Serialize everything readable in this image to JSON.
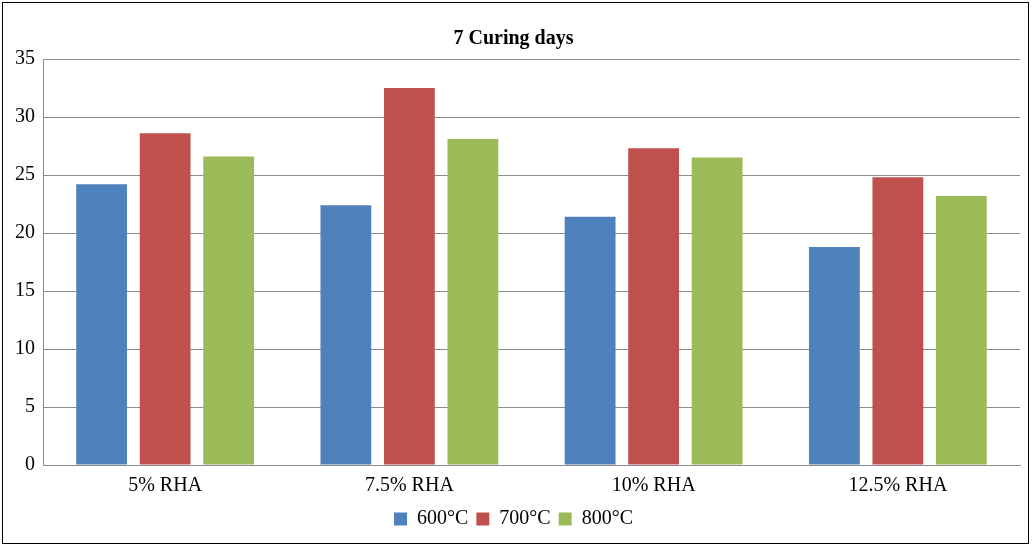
{
  "chart_data": {
    "type": "bar",
    "title": "7 Curing days",
    "categories": [
      "5% RHA",
      "7.5% RHA",
      "10% RHA",
      "12.5% RHA"
    ],
    "series": [
      {
        "name": "600°C",
        "color": "#4f81bd",
        "values": [
          24.2,
          22.4,
          21.4,
          18.8
        ]
      },
      {
        "name": "700°C",
        "color": "#c0504d",
        "values": [
          28.6,
          32.5,
          27.3,
          24.8
        ]
      },
      {
        "name": "800°C",
        "color": "#9bbb59",
        "values": [
          26.6,
          28.1,
          26.5,
          23.2
        ]
      }
    ],
    "ylim": [
      0,
      35
    ],
    "yticks": [
      0,
      5,
      10,
      15,
      20,
      25,
      30,
      35
    ],
    "grid": "y",
    "legend": "bottom"
  }
}
